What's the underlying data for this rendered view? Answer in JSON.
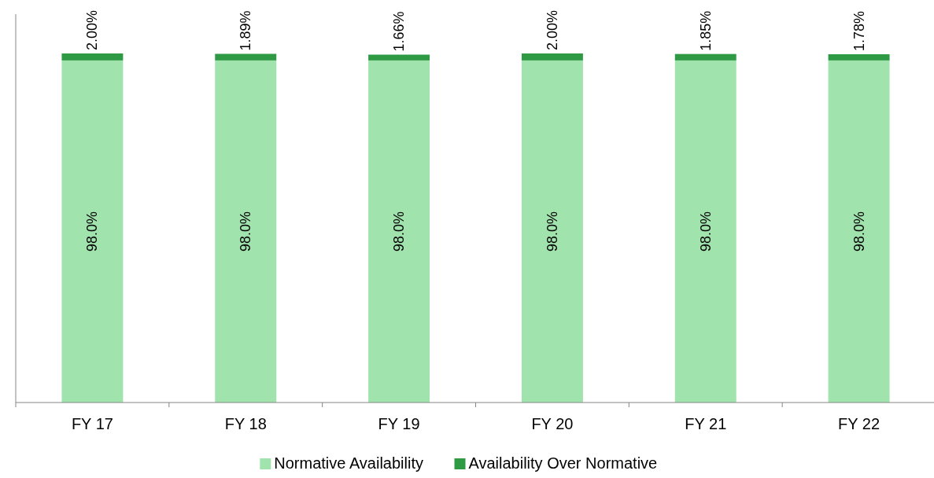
{
  "chart_data": {
    "type": "bar",
    "stacked": true,
    "categories": [
      "FY 17",
      "FY 18",
      "FY 19",
      "FY 20",
      "FY 21",
      "FY 22"
    ],
    "ylim": [
      0,
      100
    ],
    "legend": "bottom",
    "series": [
      {
        "name": "Normative Availability",
        "color": "#a0e3ac",
        "values": [
          98.0,
          98.0,
          98.0,
          98.0,
          98.0,
          98.0
        ],
        "value_labels": [
          "98.0%",
          "98.0%",
          "98.0%",
          "98.0%",
          "98.0%",
          "98.0%"
        ]
      },
      {
        "name": "Availability Over Normative",
        "color": "#2e9a44",
        "values": [
          2.0,
          1.89,
          1.66,
          2.0,
          1.85,
          1.78
        ],
        "value_labels": [
          "2.00%",
          "1.89%",
          "1.66%",
          "2.00%",
          "1.85%",
          "1.78%"
        ]
      }
    ]
  }
}
